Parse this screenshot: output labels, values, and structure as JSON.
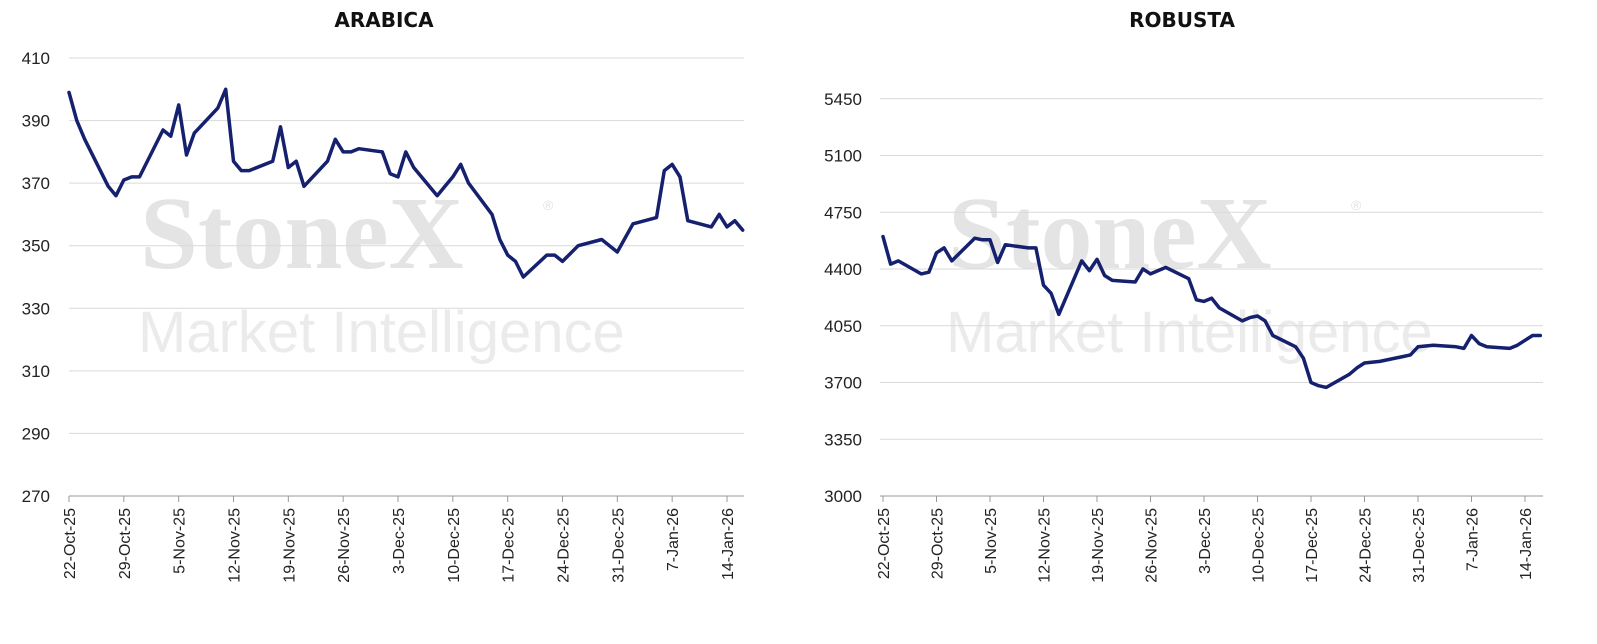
{
  "watermark": {
    "brand": "StoneX",
    "registered": "®",
    "subtitle": "Market Intelligence"
  },
  "colors": {
    "line": "#15206e",
    "grid": "#d9d9d9",
    "axis": "#999999"
  },
  "chart_data": [
    {
      "type": "line",
      "title": "ARABICA",
      "ylim": [
        270,
        410
      ],
      "yticks": [
        "270",
        "290",
        "310",
        "330",
        "350",
        "370",
        "390",
        "410"
      ],
      "xticks": [
        "22-Oct-25",
        "29-Oct-25",
        "5-Nov-25",
        "12-Nov-25",
        "19-Nov-25",
        "26-Nov-25",
        "3-Dec-25",
        "10-Dec-25",
        "17-Dec-25",
        "24-Dec-25",
        "31-Dec-25",
        "7-Jan-26",
        "14-Jan-26"
      ],
      "grid": true,
      "series": [
        {
          "x": [
            "2025-10-22",
            "2025-10-23",
            "2025-10-24",
            "2025-10-27",
            "2025-10-28",
            "2025-10-29",
            "2025-10-30",
            "2025-10-31",
            "2025-11-03",
            "2025-11-04",
            "2025-11-05",
            "2025-11-06",
            "2025-11-07",
            "2025-11-10",
            "2025-11-11",
            "2025-11-12",
            "2025-11-13",
            "2025-11-14",
            "2025-11-17",
            "2025-11-18",
            "2025-11-19",
            "2025-11-20",
            "2025-11-21",
            "2025-11-24",
            "2025-11-25",
            "2025-11-26",
            "2025-11-27",
            "2025-11-28",
            "2025-12-01",
            "2025-12-02",
            "2025-12-03",
            "2025-12-04",
            "2025-12-05",
            "2025-12-08",
            "2025-12-09",
            "2025-12-10",
            "2025-12-11",
            "2025-12-12",
            "2025-12-15",
            "2025-12-16",
            "2025-12-17",
            "2025-12-18",
            "2025-12-19",
            "2025-12-22",
            "2025-12-23",
            "2025-12-24",
            "2025-12-26",
            "2025-12-29",
            "2025-12-30",
            "2025-12-31",
            "2026-01-02",
            "2026-01-05",
            "2026-01-06",
            "2026-01-07",
            "2026-01-08",
            "2026-01-09",
            "2026-01-12",
            "2026-01-13",
            "2026-01-14",
            "2026-01-15",
            "2026-01-16"
          ],
          "values": [
            399,
            390,
            384,
            369,
            366,
            371,
            372,
            372,
            387,
            385,
            395,
            379,
            386,
            394,
            400,
            377,
            374,
            374,
            377,
            388,
            375,
            377,
            369,
            377,
            384,
            380,
            380,
            381,
            380,
            373,
            372,
            380,
            375,
            366,
            369,
            372,
            376,
            370,
            360,
            352,
            347,
            345,
            340,
            347,
            347,
            345,
            350,
            352,
            350,
            348,
            357,
            359,
            374,
            376,
            372,
            358,
            356,
            360,
            356,
            358,
            355
          ]
        }
      ]
    },
    {
      "type": "line",
      "title": "ROBUSTA",
      "ylim": [
        3000,
        5800
      ],
      "yticks": [
        "3000",
        "3350",
        "3700",
        "4050",
        "4400",
        "4750",
        "5100",
        "5450"
      ],
      "xticks": [
        "22-Oct-25",
        "29-Oct-25",
        "5-Nov-25",
        "12-Nov-25",
        "19-Nov-25",
        "26-Nov-25",
        "3-Dec-25",
        "10-Dec-25",
        "17-Dec-25",
        "24-Dec-25",
        "31-Dec-25",
        "7-Jan-26",
        "14-Jan-26"
      ],
      "grid": true,
      "series": [
        {
          "x": [
            "2025-10-22",
            "2025-10-23",
            "2025-10-24",
            "2025-10-27",
            "2025-10-28",
            "2025-10-29",
            "2025-10-30",
            "2025-10-31",
            "2025-11-03",
            "2025-11-04",
            "2025-11-05",
            "2025-11-06",
            "2025-11-07",
            "2025-11-10",
            "2025-11-11",
            "2025-11-12",
            "2025-11-13",
            "2025-11-14",
            "2025-11-17",
            "2025-11-18",
            "2025-11-19",
            "2025-11-20",
            "2025-11-21",
            "2025-11-24",
            "2025-11-25",
            "2025-11-26",
            "2025-11-27",
            "2025-11-28",
            "2025-12-01",
            "2025-12-02",
            "2025-12-03",
            "2025-12-04",
            "2025-12-05",
            "2025-12-08",
            "2025-12-09",
            "2025-12-10",
            "2025-12-11",
            "2025-12-12",
            "2025-12-15",
            "2025-12-16",
            "2025-12-17",
            "2025-12-18",
            "2025-12-19",
            "2025-12-22",
            "2025-12-23",
            "2025-12-24",
            "2025-12-26",
            "2025-12-29",
            "2025-12-30",
            "2025-12-31",
            "2026-01-02",
            "2026-01-05",
            "2026-01-06",
            "2026-01-07",
            "2026-01-08",
            "2026-01-09",
            "2026-01-12",
            "2026-01-13",
            "2026-01-14",
            "2026-01-15",
            "2026-01-16"
          ],
          "values": [
            4600,
            4430,
            4450,
            4370,
            4380,
            4500,
            4530,
            4450,
            4590,
            4580,
            4580,
            4440,
            4550,
            4530,
            4530,
            4300,
            4250,
            4120,
            4450,
            4390,
            4460,
            4360,
            4330,
            4320,
            4400,
            4370,
            4390,
            4410,
            4340,
            4210,
            4200,
            4220,
            4160,
            4080,
            4100,
            4110,
            4080,
            3990,
            3920,
            3850,
            3700,
            3680,
            3670,
            3750,
            3790,
            3820,
            3830,
            3860,
            3870,
            3920,
            3930,
            3920,
            3910,
            3990,
            3940,
            3920,
            3910,
            3930,
            3960,
            3990,
            3990
          ]
        }
      ]
    }
  ]
}
